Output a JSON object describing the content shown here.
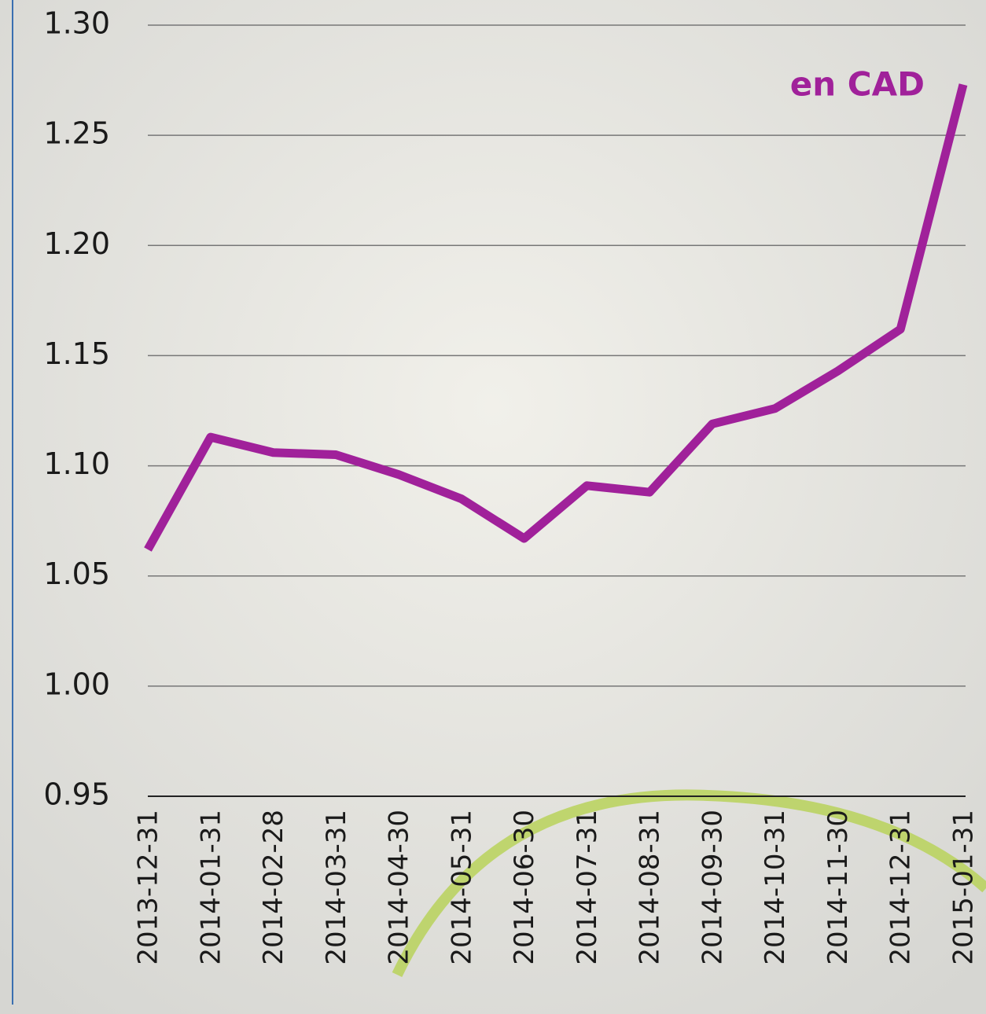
{
  "chart_data": {
    "type": "line",
    "categories": [
      "2013-12-31",
      "2014-01-31",
      "2014-02-28",
      "2014-03-31",
      "2014-04-30",
      "2014-05-31",
      "2014-06-30",
      "2014-07-31",
      "2014-08-31",
      "2014-09-30",
      "2014-10-31",
      "2014-11-30",
      "2014-12-31",
      "2015-01-31"
    ],
    "series": [
      {
        "name": "en CAD",
        "color": "#a0219a",
        "values": [
          1.062,
          1.113,
          1.106,
          1.105,
          1.096,
          1.085,
          1.067,
          1.091,
          1.088,
          1.119,
          1.126,
          1.143,
          1.162,
          1.273
        ]
      }
    ],
    "ylim": [
      0.95,
      1.3
    ],
    "yticks": [
      0.95,
      {
        "value": 1.0,
        "label": "1.00"
      },
      1.05,
      {
        "value": 1.1,
        "label": "1.10"
      },
      1.15,
      {
        "value": 1.2,
        "label": "1.20"
      },
      1.25,
      {
        "value": 1.3,
        "label": "1.30"
      }
    ],
    "grid": true
  }
}
